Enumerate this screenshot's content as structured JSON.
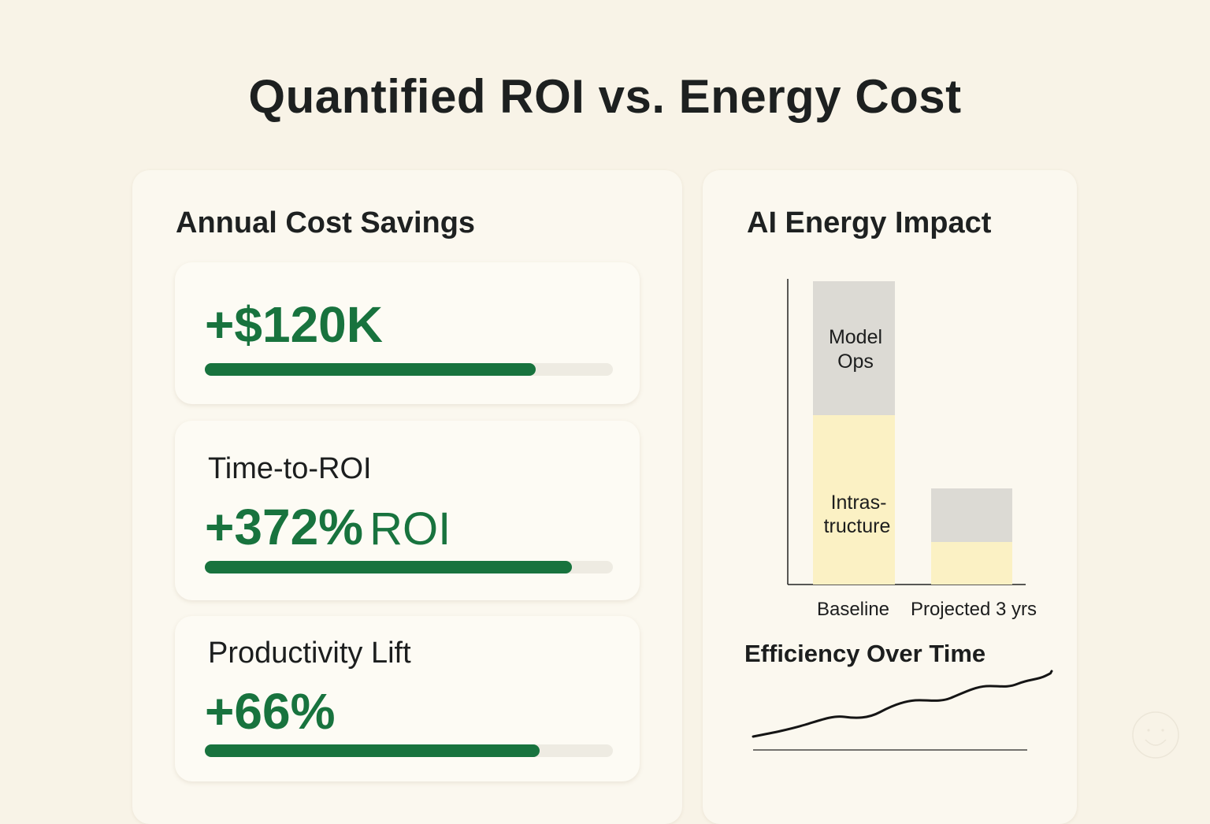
{
  "title": "Quantified ROI vs. Energy Cost",
  "colors": {
    "background": "#f8f3e7",
    "panel": "#fbf8ef",
    "accent_green": "#18733e",
    "track": "#eeebe2",
    "model_ops": "#dcdad4",
    "infrastructure": "#fbf1c4"
  },
  "left_panel": {
    "title": "Annual Cost Savings",
    "cards": [
      {
        "label": "",
        "value": "+$120K",
        "unit": "",
        "progress": 81
      },
      {
        "label": "Time-to-ROI",
        "value": "+372%",
        "unit": "ROI",
        "progress": 90
      },
      {
        "label": "Productivity Lift",
        "value": "+66%",
        "unit": "",
        "progress": 82
      }
    ]
  },
  "right_panel": {
    "title": "AI Energy Impact",
    "efficiency_title": "Efficiency Over Time"
  },
  "chart_data": [
    {
      "type": "bar",
      "stacked": true,
      "title": "AI Energy Impact",
      "categories": [
        "Baseline",
        "Projected 3 yrs"
      ],
      "series": [
        {
          "name": "Intrastructure",
          "label_text": [
            "Intras-",
            "tructure"
          ],
          "values": [
            56,
            14
          ]
        },
        {
          "name": "Model Ops",
          "label_text": [
            "Model",
            "Ops"
          ],
          "values": [
            44,
            18
          ]
        }
      ],
      "xlabel": "",
      "ylabel": "",
      "ylim": [
        0,
        100
      ],
      "grid": false,
      "legend": "inline labels"
    },
    {
      "type": "line",
      "title": "Efficiency Over Time",
      "x": [
        0,
        1,
        2,
        3,
        4,
        5,
        6,
        7,
        8,
        9,
        10
      ],
      "values": [
        10,
        18,
        25,
        24,
        36,
        35,
        47,
        46,
        56,
        58,
        78
      ],
      "xlabel": "",
      "ylabel": "",
      "grid": false
    }
  ],
  "decor": {
    "icon": "smiley-icon"
  }
}
